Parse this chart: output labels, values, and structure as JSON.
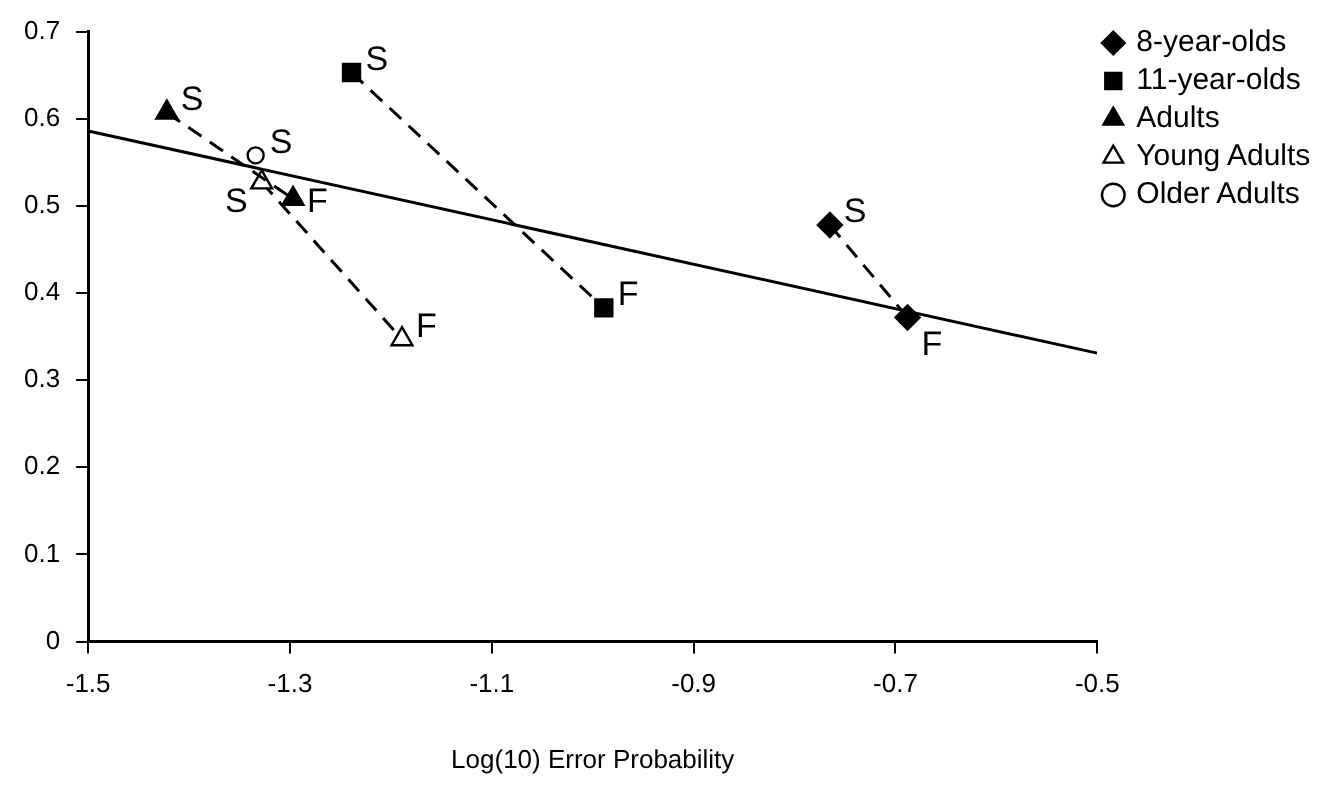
{
  "chart_data": {
    "type": "scatter",
    "xlabel": "Log(10) Error Probability",
    "xlim": [
      -1.5,
      -0.5
    ],
    "xticks": [
      -1.5,
      -1.3,
      -1.1,
      -0.9,
      -0.7,
      -0.5
    ],
    "ylim": [
      0,
      0.7
    ],
    "yticks": [
      0,
      0.1,
      0.2,
      0.3,
      0.4,
      0.5,
      0.6,
      0.7
    ],
    "grid": false,
    "legend": "top right",
    "series": [
      {
        "name": "8-year-olds",
        "type": "line",
        "color": "#000000",
        "marker": "diamond",
        "line_style": "dashed",
        "x": [
          -0.765,
          -0.688
        ],
        "values": [
          0.478,
          0.372
        ]
      },
      {
        "name": "11-year-olds",
        "type": "line",
        "color": "#000000",
        "marker": "square",
        "line_style": "dashed",
        "x": [
          -1.239,
          -0.989
        ],
        "values": [
          0.653,
          0.383
        ]
      },
      {
        "name": "Adults",
        "type": "line",
        "color": "#000000",
        "marker": "triangle",
        "line_style": "dashed",
        "x": [
          -1.422,
          -1.297
        ],
        "values": [
          0.607,
          0.508
        ]
      },
      {
        "name": "Young Adults",
        "type": "line",
        "color": "#000000",
        "marker": "triangle",
        "line_style": "dashed",
        "x": [
          -1.328,
          -1.189
        ],
        "values": [
          0.527,
          0.347
        ]
      },
      {
        "name": "Older Adults",
        "color": "#000000",
        "marker": "circle",
        "x": [
          -1.334
        ],
        "values": [
          0.558
        ]
      },
      {
        "type": "line",
        "color": "#000000",
        "marker": "none",
        "line_style": "solid",
        "x": [
          -1.5,
          -0.5
        ],
        "values": [
          0.586,
          0.331
        ]
      }
    ],
    "annotations": [
      {
        "text": "S",
        "x": -0.765,
        "y": 0.478
      },
      {
        "text": "F",
        "x": -0.688,
        "y": 0.372
      },
      {
        "text": "S",
        "x": -1.239,
        "y": 0.653
      },
      {
        "text": "F",
        "x": -0.989,
        "y": 0.383
      },
      {
        "text": "S",
        "x": -1.422,
        "y": 0.607
      },
      {
        "text": "F",
        "x": -1.297,
        "y": 0.508
      },
      {
        "text": "S",
        "x": -1.334,
        "y": 0.558
      },
      {
        "text": "S",
        "x": -1.328,
        "y": 0.527
      },
      {
        "text": "F",
        "x": -1.189,
        "y": 0.347
      }
    ]
  }
}
